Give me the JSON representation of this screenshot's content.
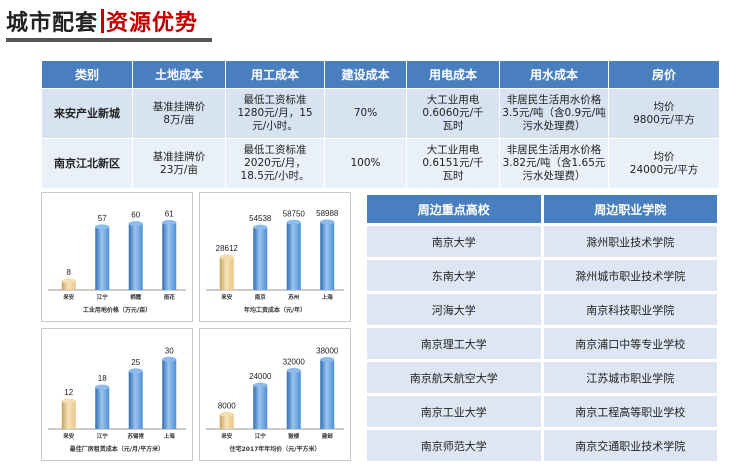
{
  "header": {
    "title_left": "城市配套",
    "title_right": "资源优势"
  },
  "cost_table": {
    "headers": [
      "类别",
      "土地成本",
      "用工成本",
      "建设成本",
      "用电成本",
      "用水成本",
      "房价"
    ],
    "rows": [
      {
        "name": "来安产业新城",
        "land": [
          "基准挂牌价",
          "8万/亩"
        ],
        "labor": [
          "最低工资标准",
          "1280元/月，15",
          "元/小时。"
        ],
        "construction": [
          "70%"
        ],
        "electricity": [
          "大工业用电",
          "0.6060元/千",
          "瓦时"
        ],
        "water": [
          "非居民生活用水价格",
          "3.5元/吨（含0.9元/吨",
          "污水处理费）"
        ],
        "housing": [
          "均价",
          "9800元/平方"
        ]
      },
      {
        "name": "南京江北新区",
        "land": [
          "基准挂牌价",
          "23万/亩"
        ],
        "labor": [
          "最低工资标准",
          "2020元/月，",
          "18.5元/小时。"
        ],
        "construction": [
          "100%"
        ],
        "electricity": [
          "大工业用电",
          "0.6151元/千",
          "瓦时"
        ],
        "water": [
          "非居民生活用水价格",
          "3.82元/吨（含1.65元",
          "污水处理费）"
        ],
        "housing": [
          "均价",
          "24000元/平方"
        ]
      }
    ]
  },
  "colors": {
    "header_blue": "#4a7fbf",
    "bar_blue": "#4e8fd6",
    "bar_gold": "#e8c687",
    "title_red": "#c00000"
  },
  "chart_data": [
    {
      "type": "bar",
      "title": "工业用地价格（万元/亩）",
      "categories": [
        "来安",
        "江宁",
        "栖霞",
        "雨花"
      ],
      "values": [
        8,
        57,
        60,
        61
      ],
      "ylim": [
        0,
        75
      ]
    },
    {
      "type": "bar",
      "title": "年均工资成本（元/年）",
      "categories": [
        "来安",
        "南京",
        "苏州",
        "上海"
      ],
      "values": [
        28612,
        54538,
        58750,
        58988
      ],
      "ylim": [
        0,
        72000
      ]
    },
    {
      "type": "bar",
      "title": "最佳厂房租赁成本（元/月/平方米）",
      "categories": [
        "来安",
        "江宁",
        "苏锡常",
        "上海"
      ],
      "values": [
        12,
        18,
        25,
        30
      ],
      "ylim": [
        0,
        37
      ]
    },
    {
      "type": "bar",
      "title": "住宅2017年年均价（元/平方米）",
      "categories": [
        "来安",
        "江宁",
        "鼓楼",
        "建邺"
      ],
      "values": [
        8000,
        24000,
        32000,
        38000
      ],
      "ylim": [
        0,
        47000
      ]
    }
  ],
  "schools": {
    "headers": [
      "周边重点高校",
      "周边职业学院"
    ],
    "rows": [
      [
        "南京大学",
        "滁州职业技术学院"
      ],
      [
        "东南大学",
        "滁州城市职业技术学院"
      ],
      [
        "河海大学",
        "南京科技职业学院"
      ],
      [
        "南京理工大学",
        "南京浦口中等专业学校"
      ],
      [
        "南京航天航空大学",
        "江苏城市职业学院"
      ],
      [
        "南京工业大学",
        "南京工程高等职业学校"
      ],
      [
        "南京师范大学",
        "南京交通职业技术学院"
      ]
    ]
  }
}
